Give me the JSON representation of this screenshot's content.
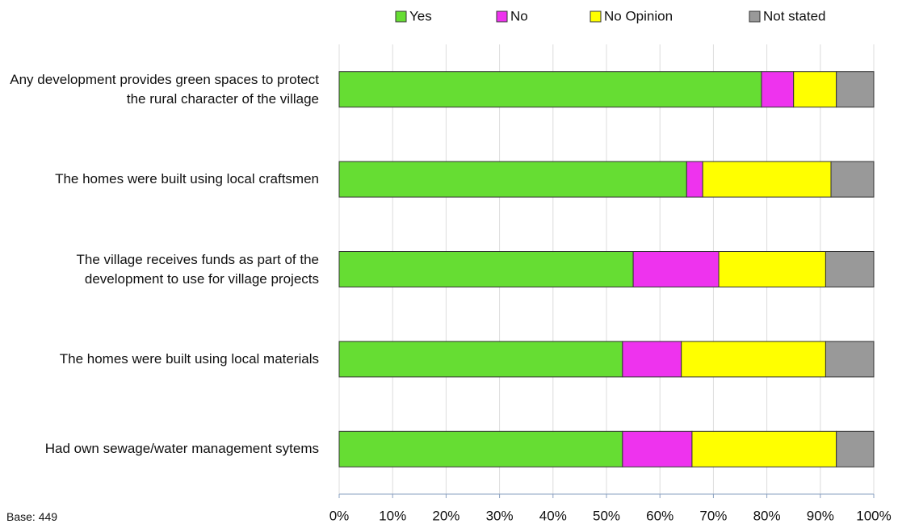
{
  "chart_data": {
    "type": "stacked_barh",
    "categories": [
      "Any development provides green spaces to protect the rural character of the village",
      "The homes were built using local craftsmen",
      "The village receives funds as part of the development to use for village projects",
      "The homes were built using local materials",
      "Had own sewage/water management sytems"
    ],
    "series": [
      {
        "name": "Yes",
        "color": "#66dd33",
        "values": [
          79,
          65,
          55,
          53,
          53
        ]
      },
      {
        "name": "No",
        "color": "#ee33ee",
        "values": [
          6,
          3,
          16,
          11,
          13
        ]
      },
      {
        "name": "No Opinion",
        "color": "#ffff00",
        "values": [
          8,
          24,
          20,
          27,
          27
        ]
      },
      {
        "name": "Not stated",
        "color": "#999999",
        "values": [
          7,
          8,
          9,
          9,
          7
        ]
      }
    ],
    "xlim": [
      0,
      100
    ],
    "xticks": [
      {
        "value": 0,
        "label": "0%"
      },
      {
        "value": 10,
        "label": "10%"
      },
      {
        "value": 20,
        "label": "20%"
      },
      {
        "value": 30,
        "label": "30%"
      },
      {
        "value": 40,
        "label": "40%"
      },
      {
        "value": 50,
        "label": "50%"
      },
      {
        "value": 60,
        "label": "60%"
      },
      {
        "value": 70,
        "label": "70%"
      },
      {
        "value": 80,
        "label": "80%"
      },
      {
        "value": 90,
        "label": "90%"
      },
      {
        "value": 100,
        "label": "100%"
      }
    ],
    "grid": true,
    "legend": "top",
    "annotation": "Base: 449"
  }
}
